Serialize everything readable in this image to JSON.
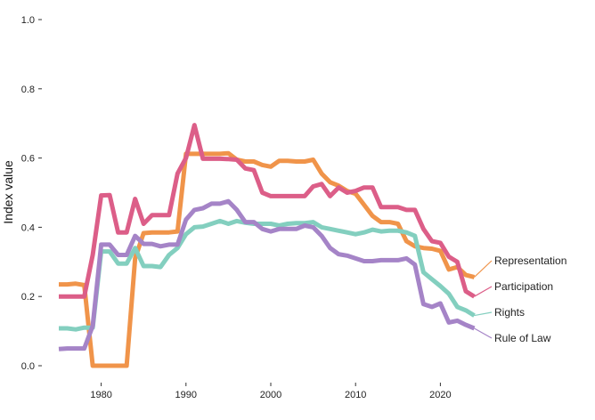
{
  "chart_data": {
    "type": "line",
    "title": "",
    "xlabel": "",
    "ylabel": "Index value",
    "xlim": [
      1975,
      2025
    ],
    "ylim": [
      0.0,
      1.0
    ],
    "x_ticks": [
      1980,
      1990,
      2000,
      2010,
      2020
    ],
    "y_ticks": [
      "0.0",
      "0.2",
      "0.4",
      "0.6",
      "0.8",
      "1.0"
    ],
    "grid": false,
    "legend": "direct labels at right end of lines",
    "x": [
      1975,
      1976,
      1977,
      1978,
      1979,
      1980,
      1981,
      1982,
      1983,
      1984,
      1985,
      1986,
      1987,
      1988,
      1989,
      1990,
      1991,
      1992,
      1993,
      1994,
      1995,
      1996,
      1997,
      1998,
      1999,
      2000,
      2001,
      2002,
      2003,
      2004,
      2005,
      2006,
      2007,
      2008,
      2009,
      2010,
      2011,
      2012,
      2013,
      2014,
      2015,
      2016,
      2017,
      2018,
      2019,
      2020,
      2021,
      2022,
      2023,
      2024
    ],
    "series": [
      {
        "name": "Representation",
        "color": "#F0944A",
        "values": [
          0.235,
          0.235,
          0.237,
          0.233,
          0.0,
          0.0,
          0.0,
          0.0,
          0.0,
          0.31,
          0.383,
          0.385,
          0.385,
          0.385,
          0.388,
          0.612,
          0.612,
          0.612,
          0.612,
          0.612,
          0.614,
          0.595,
          0.59,
          0.59,
          0.58,
          0.575,
          0.592,
          0.592,
          0.59,
          0.59,
          0.595,
          0.555,
          0.53,
          0.52,
          0.505,
          0.497,
          0.465,
          0.433,
          0.415,
          0.415,
          0.41,
          0.36,
          0.345,
          0.34,
          0.338,
          0.332,
          0.278,
          0.285,
          0.262,
          0.256
        ]
      },
      {
        "name": "Participation",
        "color": "#DC5E88",
        "values": [
          0.2,
          0.2,
          0.2,
          0.2,
          0.32,
          0.492,
          0.493,
          0.385,
          0.385,
          0.482,
          0.41,
          0.435,
          0.435,
          0.435,
          0.555,
          0.6,
          0.695,
          0.598,
          0.598,
          0.598,
          0.597,
          0.595,
          0.57,
          0.565,
          0.5,
          0.49,
          0.49,
          0.49,
          0.49,
          0.49,
          0.518,
          0.525,
          0.49,
          0.515,
          0.5,
          0.505,
          0.515,
          0.515,
          0.458,
          0.458,
          0.458,
          0.45,
          0.45,
          0.395,
          0.36,
          0.355,
          0.315,
          0.3,
          0.215,
          0.2
        ]
      },
      {
        "name": "Rights",
        "color": "#83CFBF",
        "values": [
          0.108,
          0.108,
          0.105,
          0.11,
          0.11,
          0.33,
          0.33,
          0.295,
          0.295,
          0.34,
          0.288,
          0.288,
          0.285,
          0.32,
          0.34,
          0.38,
          0.4,
          0.402,
          0.41,
          0.418,
          0.41,
          0.418,
          0.413,
          0.41,
          0.41,
          0.41,
          0.405,
          0.41,
          0.412,
          0.412,
          0.415,
          0.4,
          0.395,
          0.39,
          0.385,
          0.38,
          0.385,
          0.393,
          0.388,
          0.39,
          0.39,
          0.385,
          0.375,
          0.27,
          0.25,
          0.23,
          0.208,
          0.17,
          0.16,
          0.145
        ]
      },
      {
        "name": "Rule of Law",
        "color": "#A584C7",
        "values": [
          0.048,
          0.05,
          0.05,
          0.05,
          0.115,
          0.35,
          0.35,
          0.32,
          0.32,
          0.375,
          0.352,
          0.352,
          0.345,
          0.35,
          0.35,
          0.422,
          0.45,
          0.455,
          0.468,
          0.468,
          0.475,
          0.45,
          0.415,
          0.415,
          0.395,
          0.388,
          0.395,
          0.395,
          0.395,
          0.405,
          0.4,
          0.375,
          0.34,
          0.322,
          0.318,
          0.31,
          0.302,
          0.302,
          0.305,
          0.305,
          0.305,
          0.31,
          0.292,
          0.178,
          0.17,
          0.18,
          0.125,
          0.13,
          0.118,
          0.108
        ]
      }
    ]
  }
}
